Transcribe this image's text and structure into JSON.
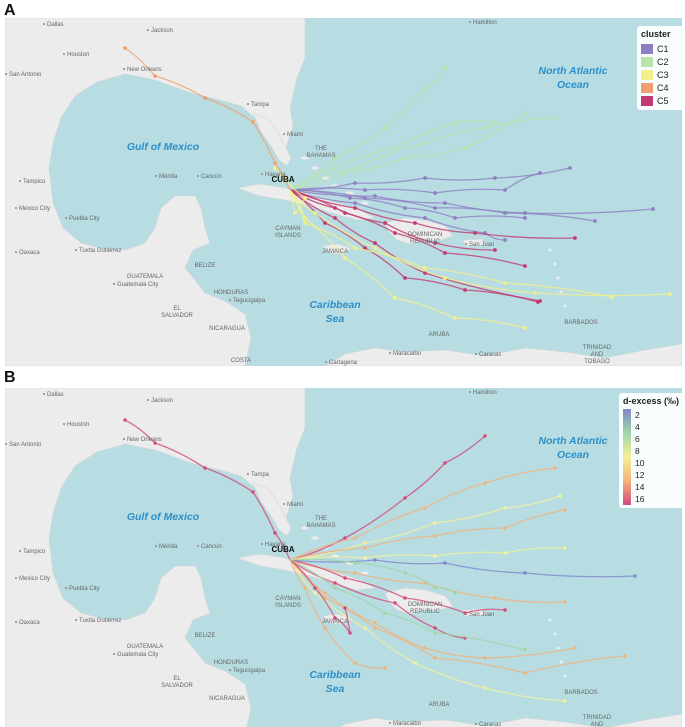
{
  "panels": [
    {
      "letter": "A",
      "legend": {
        "title": "cluster",
        "items": [
          {
            "label": "C1",
            "color": "#8f7fc2"
          },
          {
            "label": "C2",
            "color": "#b9e3a8"
          },
          {
            "label": "C3",
            "color": "#f2f08a"
          },
          {
            "label": "C4",
            "color": "#f0a070"
          },
          {
            "label": "C5",
            "color": "#c23a72"
          }
        ]
      }
    },
    {
      "letter": "B",
      "legend": {
        "title": "d-excess (‰)",
        "ticks": [
          "2",
          "4",
          "6",
          "8",
          "10",
          "12",
          "14",
          "16"
        ],
        "gradient": [
          "#7f86c9",
          "#9fd6a8",
          "#f3f09a",
          "#f3b27a",
          "#d24a7a"
        ]
      }
    }
  ],
  "map_labels": {
    "gulf": "Gulf of Mexico",
    "atlantic_1": "North Atlantic",
    "atlantic_2": "Ocean",
    "caribbean_1": "Caribbean",
    "caribbean_2": "Sea",
    "cuba": "CUBA",
    "bahamas_1": "THE",
    "bahamas_2": "BAHAMAS",
    "dominican_1": "DOMINICAN",
    "dominican_2": "REPUBLIC",
    "jamaica": "JAMAICA",
    "cayman_1": "CAYMAN",
    "cayman_2": "ISLANDS",
    "belize": "BELIZE",
    "guatemala": "GUATEMALA",
    "honduras": "HONDURAS",
    "el_salvador_1": "EL",
    "el_salvador_2": "SALVADOR",
    "nicaragua": "NICARAGUA",
    "costa": "COSTA",
    "aruba": "ARUBA",
    "barbados": "BARBADOS",
    "trinidad_1": "TRINIDAD",
    "trinidad_2": "AND",
    "trinidad_3": "TOBAGO",
    "cities": [
      "Dallas",
      "Jackson",
      "Houston",
      "San Antonio",
      "New Orleans",
      "Tampa",
      "Miami",
      "Havana",
      "Cancún",
      "Mérida",
      "Tampico",
      "Puebla City",
      "Tuxtla Gutiérrez",
      "Guatemala City",
      "Tegucigalpa",
      "San Juan",
      "Cartagena",
      "Maracaibo",
      "Caracas",
      "Hamilton",
      "Mexico City",
      "Oaxaca"
    ]
  }
}
